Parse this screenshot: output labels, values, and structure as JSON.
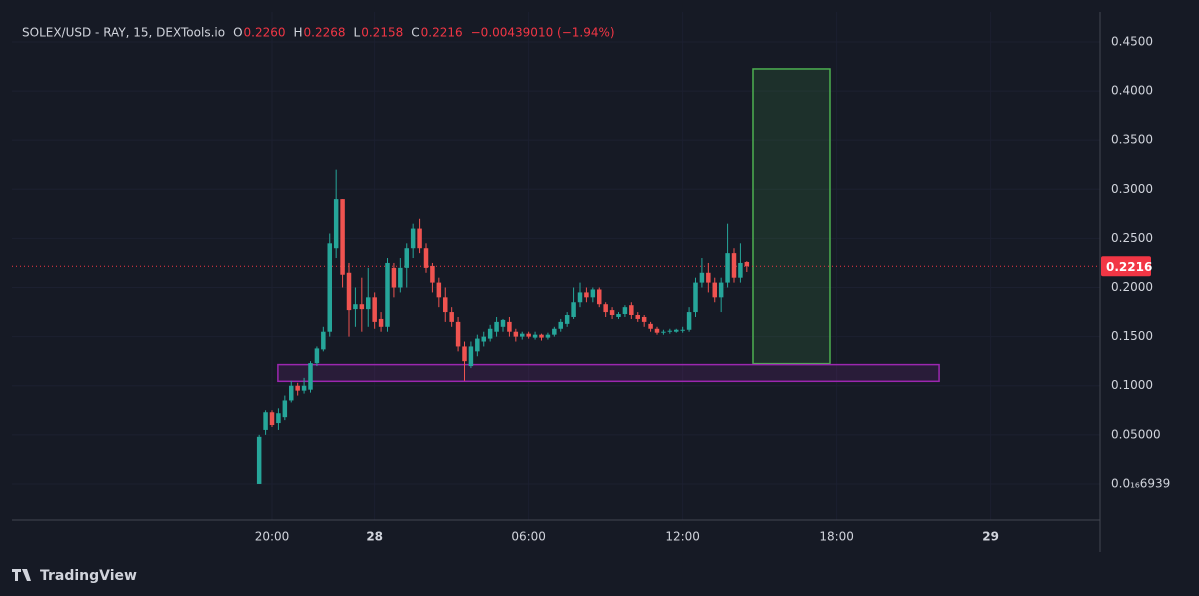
{
  "chart_data": {
    "type": "candlestick",
    "title": "SOLEX/USD - RAY, 15, DEXTools.io",
    "legend_values": [
      {
        "label": "O",
        "value": "0.2260"
      },
      {
        "label": "H",
        "value": "0.2268"
      },
      {
        "label": "L",
        "value": "0.2158"
      },
      {
        "label": "C",
        "value": "0.2216"
      },
      {
        "label": "",
        "value": "−0.00439010 (−1.94%)"
      }
    ],
    "last_price": {
      "value": 0.2216,
      "label": "0.2216",
      "color": "#f23645"
    },
    "up_color": "#26a69a",
    "down_color": "#ef5350",
    "grid": true,
    "x": [
      19.5,
      19.75,
      20,
      20.25,
      20.5,
      20.75,
      21,
      21.25,
      21.5,
      21.75,
      22,
      22.25,
      22.5,
      22.75,
      23,
      23.25,
      23.5,
      23.75,
      24,
      24.25,
      24.5,
      24.75,
      25,
      25.25,
      25.5,
      25.75,
      26,
      26.25,
      26.5,
      26.75,
      27,
      27.25,
      27.5,
      27.75,
      28,
      28.25,
      28.5,
      28.75,
      29,
      29.25,
      29.5,
      29.75,
      30,
      30.25,
      30.5,
      30.75,
      31,
      31.25,
      31.5,
      31.75,
      32,
      32.25,
      32.5,
      32.75,
      33,
      33.25,
      33.5,
      33.75,
      34,
      34.25,
      34.5,
      34.75,
      35,
      35.25,
      35.5,
      35.75,
      36,
      36.25,
      36.5,
      36.75,
      37,
      37.25,
      37.5,
      37.75,
      38,
      38.25,
      38.5
    ],
    "open": [
      0.0,
      0.055,
      0.073,
      0.062,
      0.068,
      0.085,
      0.1,
      0.095,
      0.096,
      0.123,
      0.137,
      0.155,
      0.24,
      0.29,
      0.215,
      0.178,
      0.183,
      0.178,
      0.19,
      0.168,
      0.16,
      0.22,
      0.2,
      0.22,
      0.24,
      0.26,
      0.24,
      0.222,
      0.205,
      0.19,
      0.175,
      0.165,
      0.14,
      0.12,
      0.135,
      0.145,
      0.148,
      0.155,
      0.16,
      0.165,
      0.155,
      0.15,
      0.153,
      0.149,
      0.152,
      0.149,
      0.152,
      0.158,
      0.163,
      0.17,
      0.185,
      0.195,
      0.19,
      0.198,
      0.183,
      0.177,
      0.17,
      0.173,
      0.182,
      0.172,
      0.17,
      0.163,
      0.158,
      0.154,
      0.155,
      0.155,
      0.156,
      0.157,
      0.175,
      0.205,
      0.215,
      0.205,
      0.19,
      0.205,
      0.235,
      0.21,
      0.226
    ],
    "high": [
      0.05,
      0.075,
      0.075,
      0.077,
      0.09,
      0.105,
      0.103,
      0.108,
      0.125,
      0.14,
      0.16,
      0.255,
      0.32,
      0.29,
      0.225,
      0.2,
      0.21,
      0.22,
      0.195,
      0.175,
      0.23,
      0.225,
      0.23,
      0.245,
      0.265,
      0.27,
      0.245,
      0.225,
      0.21,
      0.2,
      0.18,
      0.17,
      0.145,
      0.145,
      0.152,
      0.155,
      0.162,
      0.17,
      0.168,
      0.17,
      0.158,
      0.155,
      0.155,
      0.155,
      0.153,
      0.154,
      0.16,
      0.168,
      0.175,
      0.2,
      0.205,
      0.2,
      0.2,
      0.2,
      0.185,
      0.18,
      0.175,
      0.182,
      0.185,
      0.175,
      0.172,
      0.165,
      0.16,
      0.157,
      0.158,
      0.158,
      0.16,
      0.18,
      0.21,
      0.23,
      0.225,
      0.21,
      0.21,
      0.265,
      0.24,
      0.245,
      0.2268
    ],
    "low": [
      0.0,
      0.05,
      0.058,
      0.055,
      0.065,
      0.083,
      0.09,
      0.092,
      0.093,
      0.12,
      0.135,
      0.15,
      0.23,
      0.2,
      0.15,
      0.16,
      0.155,
      0.16,
      0.158,
      0.155,
      0.155,
      0.19,
      0.195,
      0.2,
      0.23,
      0.235,
      0.215,
      0.195,
      0.18,
      0.165,
      0.16,
      0.135,
      0.105,
      0.118,
      0.13,
      0.14,
      0.145,
      0.15,
      0.155,
      0.15,
      0.145,
      0.147,
      0.148,
      0.147,
      0.146,
      0.147,
      0.15,
      0.155,
      0.16,
      0.168,
      0.18,
      0.185,
      0.185,
      0.18,
      0.17,
      0.168,
      0.168,
      0.17,
      0.168,
      0.165,
      0.16,
      0.155,
      0.152,
      0.152,
      0.153,
      0.154,
      0.154,
      0.155,
      0.17,
      0.2,
      0.195,
      0.185,
      0.175,
      0.2,
      0.205,
      0.205,
      0.2158
    ],
    "close": [
      0.048,
      0.073,
      0.06,
      0.072,
      0.085,
      0.1,
      0.095,
      0.1,
      0.123,
      0.138,
      0.155,
      0.245,
      0.29,
      0.213,
      0.177,
      0.183,
      0.178,
      0.19,
      0.165,
      0.16,
      0.225,
      0.2,
      0.22,
      0.24,
      0.26,
      0.24,
      0.22,
      0.205,
      0.19,
      0.175,
      0.165,
      0.14,
      0.125,
      0.14,
      0.148,
      0.15,
      0.158,
      0.165,
      0.167,
      0.155,
      0.15,
      0.153,
      0.15,
      0.152,
      0.149,
      0.152,
      0.158,
      0.165,
      0.172,
      0.185,
      0.195,
      0.19,
      0.198,
      0.183,
      0.175,
      0.172,
      0.173,
      0.18,
      0.172,
      0.168,
      0.165,
      0.158,
      0.154,
      0.155,
      0.156,
      0.157,
      0.157,
      0.175,
      0.205,
      0.215,
      0.205,
      0.19,
      0.205,
      0.235,
      0.21,
      0.225,
      0.2216
    ],
    "xlim": [
      9.87,
      52.26
    ],
    "xticks": [
      {
        "value": 20,
        "label": "20:00"
      },
      {
        "value": 24,
        "label": "28"
      },
      {
        "value": 30,
        "label": "06:00"
      },
      {
        "value": 36,
        "label": "12:00"
      },
      {
        "value": 42,
        "label": "18:00"
      },
      {
        "value": 48,
        "label": "29"
      }
    ],
    "ylim": [
      -0.0367,
      0.4805
    ],
    "yticks": [
      {
        "value": 6.939e-17,
        "label": "0.0₁₆6939"
      },
      {
        "value": 0.05,
        "label": "0.05000"
      },
      {
        "value": 0.1,
        "label": "0.1000"
      },
      {
        "value": 0.15,
        "label": "0.1500"
      },
      {
        "value": 0.2,
        "label": "0.2000"
      },
      {
        "value": 0.25,
        "label": "0.2500"
      },
      {
        "value": 0.3,
        "label": "0.3000"
      },
      {
        "value": 0.35,
        "label": "0.3500"
      },
      {
        "value": 0.4,
        "label": "0.4000"
      },
      {
        "value": 0.45,
        "label": "0.4500"
      }
    ],
    "drawings": [
      {
        "color": "#4caf50",
        "x": [
          38.74,
          41.74
        ],
        "y": [
          0.1225,
          0.4225
        ]
      },
      {
        "color": "#9c27b0",
        "x": [
          20.23,
          45.99
        ],
        "y": [
          0.1045,
          0.1215
        ]
      }
    ],
    "branding": "TradingView"
  }
}
